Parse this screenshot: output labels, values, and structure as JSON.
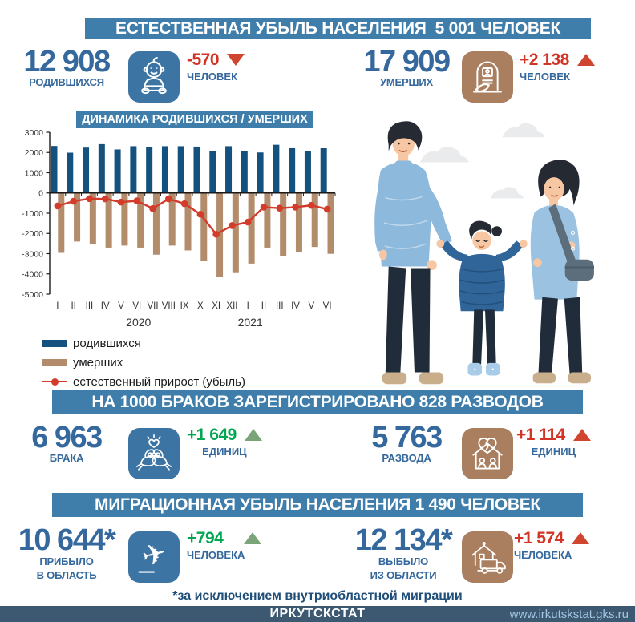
{
  "sections": {
    "natural": {
      "banner": "ЕСТЕСТВЕННАЯ УБЫЛЬ НАСЕЛЕНИЯ  5 001 ЧЕЛОВЕК",
      "born": {
        "value": "12 908",
        "label": "РОДИВШИХСЯ",
        "delta": "-570",
        "delta_unit": "ЧЕЛОВЕК",
        "trend": "down",
        "icon": "baby-icon"
      },
      "died": {
        "value": "17 909",
        "label": "УМЕРШИХ",
        "delta": "+2 138",
        "delta_unit": "ЧЕЛОВЕК",
        "trend": "up",
        "icon": "tombstone-icon"
      }
    },
    "marriage": {
      "banner": "НА 1000 БРАКОВ ЗАРЕГИСТРИРОВАНО 828 РАЗВОДОВ",
      "marriages": {
        "value": "6 963",
        "label": "БРАКА",
        "delta": "+1 649",
        "delta_unit": "ЕДИНИЦ",
        "trend": "up-green",
        "icon": "doves-icon"
      },
      "divorces": {
        "value": "5 763",
        "label": "РАЗВОДА",
        "delta": "+1 114",
        "delta_unit": "ЕДИНИЦ",
        "trend": "up-red",
        "icon": "broken-home-icon"
      }
    },
    "migration": {
      "banner": "МИГРАЦИОННАЯ УБЫЛЬ НАСЕЛЕНИЯ 1 490 ЧЕЛОВЕК",
      "arrived": {
        "value": "10 644*",
        "label1": "ПРИБЫЛО",
        "label2": "В ОБЛАСТЬ",
        "delta": "+794",
        "delta_unit": "ЧЕЛОВЕКА",
        "trend": "up-green",
        "icon": "airplane-icon"
      },
      "departed": {
        "value": "12 134*",
        "label1": "ВЫБЫЛО",
        "label2": "ИЗ ОБЛАСТИ",
        "delta": "+1 574",
        "delta_unit": "ЧЕЛОВЕКА",
        "trend": "up-red",
        "icon": "moving-truck-icon"
      }
    }
  },
  "footnote": "*за исключением внутриобластной миграции",
  "footer": {
    "org": "ИРКУТСКСТАТ",
    "url": "www.irkutskstat.gks.ru"
  },
  "colors": {
    "banner_blue": "#3f7dab",
    "number_blue": "#35699e",
    "tile_blue": "#3c74a3",
    "tile_brown": "#aa7f60",
    "bar_blue": "#15517e",
    "bar_brown": "#b28c6b",
    "line_red": "#d33b2b",
    "delta_red": "#d23425",
    "delta_green": "#00a651",
    "triangle_green": "#7ba579",
    "footer_bg": "#3d5971",
    "footnote_blue": "#1f4e79"
  },
  "chart_data": {
    "type": "bar+line",
    "title": "ДИНАМИКА РОДИВШИХСЯ / УМЕРШИХ",
    "months": [
      "I",
      "II",
      "III",
      "IV",
      "V",
      "VI",
      "VII",
      "VIII",
      "IX",
      "X",
      "XI",
      "XII",
      "I",
      "II",
      "III",
      "IV",
      "V",
      "VI"
    ],
    "year_groups": [
      {
        "label": "2020",
        "months": 12
      },
      {
        "label": "2021",
        "months": 6
      }
    ],
    "ylim": [
      -5000,
      3000
    ],
    "yticks": [
      3000,
      2000,
      1000,
      0,
      -1000,
      -2000,
      -3000,
      -4000,
      -5000
    ],
    "grid": false,
    "legend_position": "bottom-left",
    "series": [
      {
        "name": "родившихся",
        "type": "bar",
        "color": "#15517e",
        "values": [
          2320,
          1990,
          2240,
          2410,
          2150,
          2310,
          2280,
          2310,
          2310,
          2290,
          2090,
          2310,
          2050,
          2000,
          2380,
          2210,
          2060,
          2208
        ]
      },
      {
        "name": "умерших",
        "type": "bar",
        "color": "#b28c6b",
        "values": [
          -2960,
          -2400,
          -2520,
          -2700,
          -2600,
          -2700,
          -3050,
          -2600,
          -2840,
          -3340,
          -4130,
          -3920,
          -3490,
          -2700,
          -3130,
          -2910,
          -2670,
          -3009
        ]
      },
      {
        "name": "естественный прирост (убыль)",
        "type": "line",
        "color": "#d33b2b",
        "values": [
          -640,
          -410,
          -280,
          -290,
          -450,
          -390,
          -770,
          -290,
          -530,
          -1050,
          -2040,
          -1610,
          -1440,
          -700,
          -750,
          -700,
          -610,
          -801
        ]
      }
    ]
  }
}
